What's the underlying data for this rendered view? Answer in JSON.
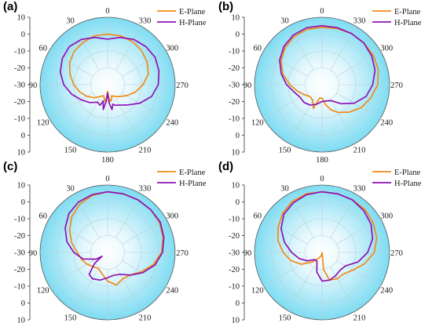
{
  "colors": {
    "e_plane": "#F28A14",
    "h_plane": "#8E12B5",
    "bg_center": "#ffffff",
    "bg_edge": "#7fdcf2"
  },
  "chart_data": [
    {
      "type": "polar",
      "panel_label": "(a)",
      "r_ticks": [
        "10",
        "0",
        "-10",
        "-20",
        "-30",
        "-20",
        "-10",
        "0",
        "10"
      ],
      "r_range_db": [
        -30,
        10
      ],
      "angle_labels": [
        "0",
        "30",
        "60",
        "90",
        "120",
        "150",
        "180",
        "210",
        "240",
        "270",
        "300",
        "330"
      ],
      "series": [
        {
          "name": "E-Plane",
          "color_key": "e_plane",
          "theta": [
            0,
            15,
            30,
            45,
            60,
            75,
            90,
            105,
            120,
            135,
            150,
            160,
            165,
            170,
            175,
            180,
            185,
            190,
            195,
            200,
            210,
            225,
            240,
            255,
            270,
            285,
            300,
            315,
            330,
            345,
            360
          ],
          "r_db": [
            0,
            0,
            -1,
            -2,
            -4,
            -7,
            -10,
            -13,
            -16,
            -19,
            -22,
            -23,
            -22,
            -20,
            -22,
            -26,
            -22,
            -20,
            -21,
            -23,
            -22,
            -20,
            -17,
            -13,
            -9,
            -5,
            -3,
            -1.5,
            -0.5,
            0,
            0
          ]
        },
        {
          "name": "H-Plane",
          "color_key": "h_plane",
          "theta": [
            0,
            15,
            30,
            45,
            60,
            75,
            90,
            105,
            120,
            135,
            150,
            160,
            165,
            170,
            175,
            180,
            185,
            190,
            195,
            200,
            210,
            225,
            240,
            255,
            270,
            285,
            300,
            315,
            330,
            345,
            360
          ],
          "r_db": [
            -3,
            -1,
            1,
            2,
            1,
            -1,
            -4,
            -8,
            -12,
            -15,
            -18,
            -17,
            -20,
            -15,
            -20,
            -25,
            -19,
            -15,
            -18,
            -17,
            -16,
            -13,
            -8,
            -3,
            0,
            1.5,
            2.5,
            2,
            1,
            -1,
            -3
          ]
        }
      ]
    },
    {
      "type": "polar",
      "panel_label": "(b)",
      "r_ticks": [
        "10",
        "0",
        "-10",
        "-20",
        "-30",
        "-20",
        "-10",
        "0",
        "10"
      ],
      "r_range_db": [
        -30,
        10
      ],
      "angle_labels": [
        "0",
        "30",
        "60",
        "90",
        "120",
        "150",
        "180",
        "210",
        "240",
        "270",
        "300",
        "330"
      ],
      "series": [
        {
          "name": "E-Plane",
          "color_key": "e_plane",
          "theta": [
            0,
            15,
            30,
            45,
            60,
            75,
            90,
            105,
            120,
            135,
            150,
            160,
            170,
            180,
            190,
            200,
            210,
            225,
            240,
            255,
            270,
            285,
            300,
            315,
            330,
            345,
            360
          ],
          "r_db": [
            4,
            4,
            3,
            1,
            -2,
            -6,
            -11,
            -15,
            -18,
            -20,
            -19,
            -15,
            -22,
            -22,
            -18,
            -14,
            -11,
            -7,
            -3,
            0,
            3,
            4.5,
            5,
            5,
            5,
            4.5,
            4
          ]
        },
        {
          "name": "H-Plane",
          "color_key": "h_plane",
          "theta": [
            0,
            15,
            30,
            45,
            60,
            75,
            90,
            105,
            120,
            135,
            150,
            165,
            180,
            195,
            210,
            225,
            240,
            255,
            270,
            285,
            300,
            315,
            330,
            345,
            360
          ],
          "r_db": [
            5,
            5,
            4,
            2,
            -1,
            -5,
            -9,
            -13,
            -15,
            -15,
            -16,
            -18,
            -20,
            -20,
            -19,
            -14,
            -8,
            -3,
            0,
            2.5,
            4,
            5,
            5,
            5,
            5
          ]
        }
      ]
    },
    {
      "type": "polar",
      "panel_label": "(c)",
      "r_ticks": [
        "10",
        "0",
        "-10",
        "-20",
        "-30",
        "-20",
        "-10",
        "0",
        "10"
      ],
      "r_range_db": [
        -30,
        10
      ],
      "angle_labels": [
        "0",
        "30",
        "60",
        "90",
        "120",
        "150",
        "180",
        "210",
        "240",
        "270",
        "300",
        "330"
      ],
      "series": [
        {
          "name": "E-Plane",
          "color_key": "e_plane",
          "theta": [
            0,
            15,
            30,
            45,
            60,
            75,
            90,
            105,
            120,
            135,
            150,
            165,
            180,
            195,
            210,
            225,
            240,
            255,
            270,
            285,
            300,
            315,
            330,
            345,
            360
          ],
          "r_db": [
            6,
            5,
            3,
            0,
            -4,
            -8,
            -12,
            -14,
            -16,
            -18,
            -19,
            -17,
            -13,
            -10,
            -12,
            -11,
            -7,
            -2,
            2,
            4,
            5.5,
            6,
            6,
            6,
            6
          ]
        },
        {
          "name": "H-Plane",
          "color_key": "h_plane",
          "theta": [
            0,
            15,
            30,
            45,
            60,
            75,
            90,
            105,
            120,
            125,
            130,
            140,
            150,
            165,
            180,
            195,
            210,
            225,
            240,
            255,
            270,
            285,
            300,
            315,
            330,
            345,
            360
          ],
          "r_db": [
            6,
            5.5,
            4.5,
            2.5,
            -1,
            -5,
            -10,
            -15,
            -22,
            -26,
            -20,
            -13,
            -12,
            -13,
            -15,
            -16,
            -15,
            -11,
            -6,
            -1,
            2.5,
            4.5,
            6,
            6,
            6,
            6,
            6
          ]
        }
      ]
    },
    {
      "type": "polar",
      "panel_label": "(d)",
      "r_ticks": [
        "10",
        "0",
        "-10",
        "-20",
        "-30",
        "-20",
        "-10",
        "0",
        "10"
      ],
      "r_range_db": [
        -30,
        10
      ],
      "angle_labels": [
        "0",
        "30",
        "60",
        "90",
        "120",
        "150",
        "180",
        "210",
        "240",
        "270",
        "300",
        "330"
      ],
      "series": [
        {
          "name": "E-Plane",
          "color_key": "e_plane",
          "theta": [
            0,
            15,
            30,
            45,
            60,
            75,
            90,
            105,
            120,
            135,
            150,
            165,
            175,
            180,
            185,
            195,
            210,
            225,
            240,
            255,
            270,
            285,
            300,
            315,
            330,
            345,
            360
          ],
          "r_db": [
            6,
            6,
            5,
            3,
            0,
            -3,
            -7,
            -11,
            -16,
            -22,
            -26,
            -28,
            -29,
            -30,
            -20,
            -13,
            -12,
            -12,
            -9,
            -4,
            1,
            3.5,
            5,
            6,
            6,
            6,
            6
          ]
        },
        {
          "name": "H-Plane",
          "color_key": "h_plane",
          "theta": [
            0,
            15,
            30,
            45,
            60,
            75,
            90,
            105,
            120,
            135,
            150,
            165,
            180,
            195,
            210,
            225,
            240,
            255,
            270,
            285,
            300,
            315,
            330,
            345,
            360
          ],
          "r_db": [
            6,
            5.5,
            4,
            2,
            -2,
            -7,
            -12,
            -16,
            -20,
            -24,
            -24,
            -18,
            -13,
            -13,
            -14,
            -15,
            -14,
            -8,
            -3,
            1,
            3.5,
            5,
            6,
            6,
            6
          ]
        }
      ]
    }
  ]
}
